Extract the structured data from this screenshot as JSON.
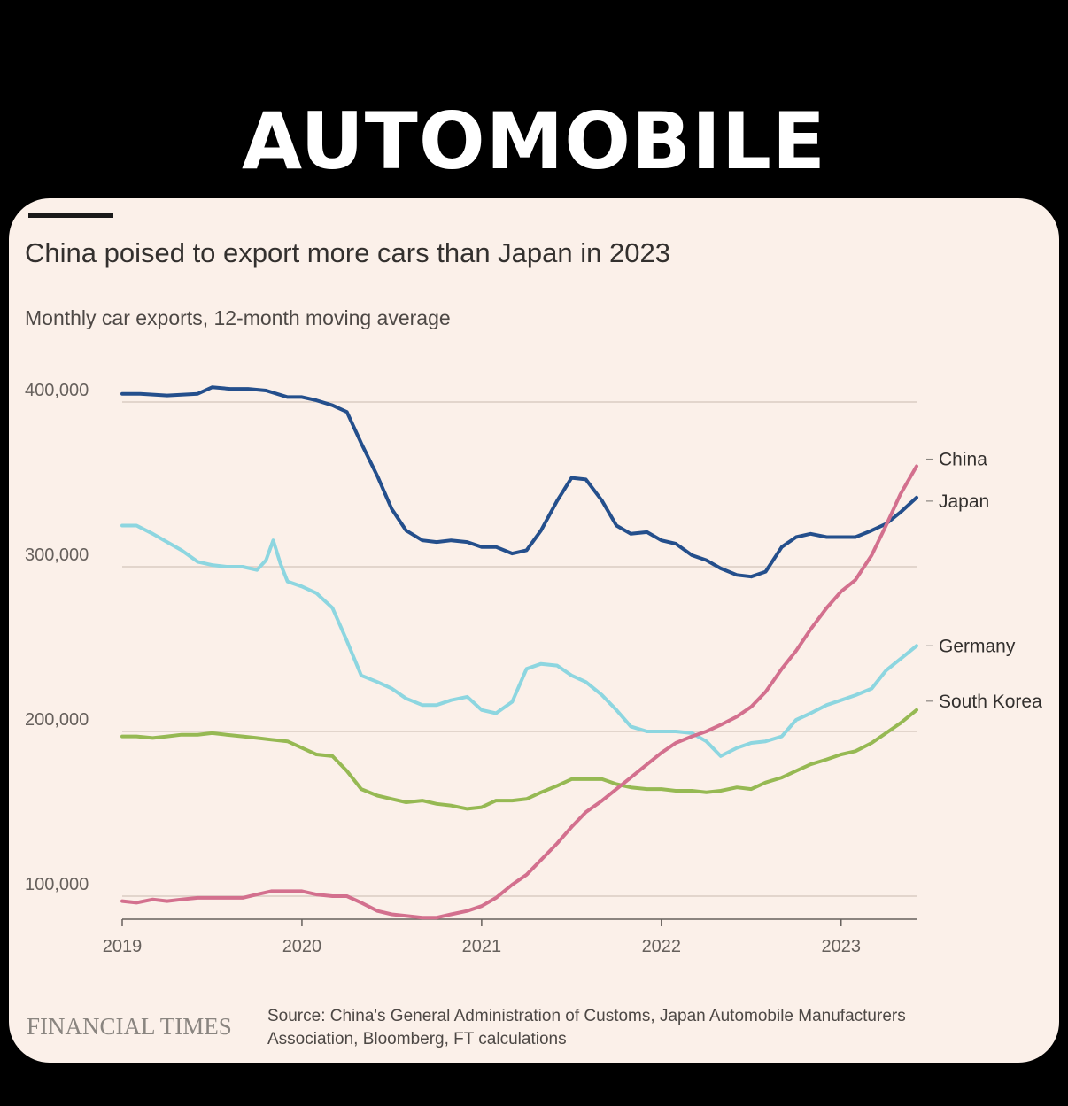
{
  "headline": "AUTOMOBILE",
  "colors": {
    "China": "#d3708e",
    "Japan": "#244f8c",
    "Germany": "#8dd6e0",
    "South Korea": "#96b953"
  },
  "footer": {
    "brand": "FINANCIAL TIMES",
    "source_line1": "Source: China's General Administration of Customs, Japan Automobile Manufacturers",
    "source_line2": "Association, Bloomberg, FT calculations"
  },
  "chart_data": {
    "type": "line",
    "title": "China poised to export more cars than Japan in 2023",
    "subtitle": "Monthly car exports, 12-month moving average",
    "xlabel": "",
    "ylabel": "",
    "xlim": [
      2019.0,
      2023.42
    ],
    "ylim": [
      86000,
      410000
    ],
    "yticks": [
      100000,
      200000,
      300000,
      400000
    ],
    "ytick_labels": [
      "100,000",
      "200,000",
      "300,000",
      "400,000"
    ],
    "xticks": [
      2019,
      2020,
      2021,
      2022,
      2023
    ],
    "xtick_labels": [
      "2019",
      "2020",
      "2021",
      "2022",
      "2023"
    ],
    "grid": true,
    "legend": "inline-right",
    "series": [
      {
        "name": "Japan",
        "x": [
          2019.0,
          2019.1,
          2019.25,
          2019.42,
          2019.5,
          2019.6,
          2019.7,
          2019.8,
          2019.92,
          2020.0,
          2020.08,
          2020.17,
          2020.25,
          2020.33,
          2020.42,
          2020.5,
          2020.58,
          2020.67,
          2020.75,
          2020.83,
          2020.92,
          2021.0,
          2021.08,
          2021.17,
          2021.25,
          2021.33,
          2021.42,
          2021.5,
          2021.58,
          2021.67,
          2021.75,
          2021.83,
          2021.92,
          2022.0,
          2022.08,
          2022.17,
          2022.25,
          2022.33,
          2022.42,
          2022.5,
          2022.58,
          2022.67,
          2022.75,
          2022.83,
          2022.92,
          2023.0,
          2023.08,
          2023.17,
          2023.25,
          2023.33,
          2023.42
        ],
        "values": [
          405000,
          405000,
          404000,
          405000,
          409000,
          408000,
          408000,
          407000,
          403000,
          403000,
          401000,
          398000,
          394000,
          375000,
          355000,
          335000,
          322000,
          316000,
          315000,
          316000,
          315000,
          312000,
          312000,
          308000,
          310000,
          322000,
          340000,
          354000,
          353000,
          340000,
          325000,
          320000,
          321000,
          316000,
          314000,
          307000,
          304000,
          299000,
          295000,
          294000,
          297000,
          312000,
          318000,
          320000,
          318000,
          318000,
          318000,
          322000,
          326000,
          333000,
          342000
        ]
      },
      {
        "name": "Germany",
        "x": [
          2019.0,
          2019.08,
          2019.17,
          2019.25,
          2019.33,
          2019.42,
          2019.5,
          2019.58,
          2019.67,
          2019.75,
          2019.8,
          2019.84,
          2019.88,
          2019.92,
          2020.0,
          2020.08,
          2020.17,
          2020.25,
          2020.33,
          2020.42,
          2020.5,
          2020.58,
          2020.67,
          2020.75,
          2020.83,
          2020.92,
          2021.0,
          2021.08,
          2021.17,
          2021.25,
          2021.33,
          2021.42,
          2021.5,
          2021.58,
          2021.67,
          2021.75,
          2021.83,
          2021.92,
          2022.0,
          2022.08,
          2022.17,
          2022.25,
          2022.33,
          2022.42,
          2022.5,
          2022.58,
          2022.67,
          2022.75,
          2022.83,
          2022.92,
          2023.0,
          2023.08,
          2023.17,
          2023.25,
          2023.33,
          2023.42
        ],
        "values": [
          325000,
          325000,
          320000,
          315000,
          310000,
          303000,
          301000,
          300000,
          300000,
          298000,
          304000,
          316000,
          302000,
          291000,
          288000,
          284000,
          275000,
          255000,
          234000,
          230000,
          226000,
          220000,
          216000,
          216000,
          219000,
          221000,
          213000,
          211000,
          218000,
          238000,
          241000,
          240000,
          234000,
          230000,
          222000,
          213000,
          203000,
          200000,
          200000,
          200000,
          199000,
          194000,
          185000,
          190000,
          193000,
          194000,
          197000,
          207000,
          211000,
          216000,
          219000,
          222000,
          226000,
          237000,
          244000,
          252000
        ]
      },
      {
        "name": "South Korea",
        "x": [
          2019.0,
          2019.08,
          2019.17,
          2019.25,
          2019.33,
          2019.42,
          2019.5,
          2019.58,
          2019.67,
          2019.75,
          2019.83,
          2019.92,
          2020.0,
          2020.08,
          2020.17,
          2020.25,
          2020.33,
          2020.42,
          2020.5,
          2020.58,
          2020.67,
          2020.75,
          2020.83,
          2020.92,
          2021.0,
          2021.08,
          2021.17,
          2021.25,
          2021.33,
          2021.42,
          2021.5,
          2021.58,
          2021.67,
          2021.75,
          2021.83,
          2021.92,
          2022.0,
          2022.08,
          2022.17,
          2022.25,
          2022.33,
          2022.42,
          2022.5,
          2022.58,
          2022.67,
          2022.75,
          2022.83,
          2022.92,
          2023.0,
          2023.08,
          2023.17,
          2023.25,
          2023.33,
          2023.42
        ],
        "values": [
          197000,
          197000,
          196000,
          197000,
          198000,
          198000,
          199000,
          198000,
          197000,
          196000,
          195000,
          194000,
          190000,
          186000,
          185000,
          176000,
          165000,
          161000,
          159000,
          157000,
          158000,
          156000,
          155000,
          153000,
          154000,
          158000,
          158000,
          159000,
          163000,
          167000,
          171000,
          171000,
          171000,
          168000,
          166000,
          165000,
          165000,
          164000,
          164000,
          163000,
          164000,
          166000,
          165000,
          169000,
          172000,
          176000,
          180000,
          183000,
          186000,
          188000,
          193000,
          199000,
          205000,
          213000
        ]
      },
      {
        "name": "China",
        "x": [
          2019.0,
          2019.08,
          2019.17,
          2019.25,
          2019.33,
          2019.42,
          2019.5,
          2019.58,
          2019.67,
          2019.75,
          2019.83,
          2019.92,
          2020.0,
          2020.08,
          2020.17,
          2020.25,
          2020.33,
          2020.42,
          2020.5,
          2020.58,
          2020.67,
          2020.75,
          2020.83,
          2020.92,
          2021.0,
          2021.08,
          2021.17,
          2021.25,
          2021.33,
          2021.42,
          2021.5,
          2021.58,
          2021.67,
          2021.75,
          2021.83,
          2021.92,
          2022.0,
          2022.08,
          2022.17,
          2022.25,
          2022.33,
          2022.42,
          2022.5,
          2022.58,
          2022.67,
          2022.75,
          2022.83,
          2022.92,
          2023.0,
          2023.08,
          2023.17,
          2023.25,
          2023.33,
          2023.42
        ],
        "values": [
          97000,
          96000,
          98000,
          97000,
          98000,
          99000,
          99000,
          99000,
          99000,
          101000,
          103000,
          103000,
          103000,
          101000,
          100000,
          100000,
          96000,
          91000,
          89000,
          88000,
          87000,
          87000,
          89000,
          91000,
          94000,
          99000,
          107000,
          113000,
          122000,
          132000,
          142000,
          151000,
          158000,
          165000,
          172000,
          180000,
          187000,
          193000,
          197000,
          200000,
          204000,
          209000,
          215000,
          224000,
          238000,
          249000,
          262000,
          275000,
          285000,
          292000,
          307000,
          325000,
          344000,
          361000
        ]
      }
    ]
  }
}
